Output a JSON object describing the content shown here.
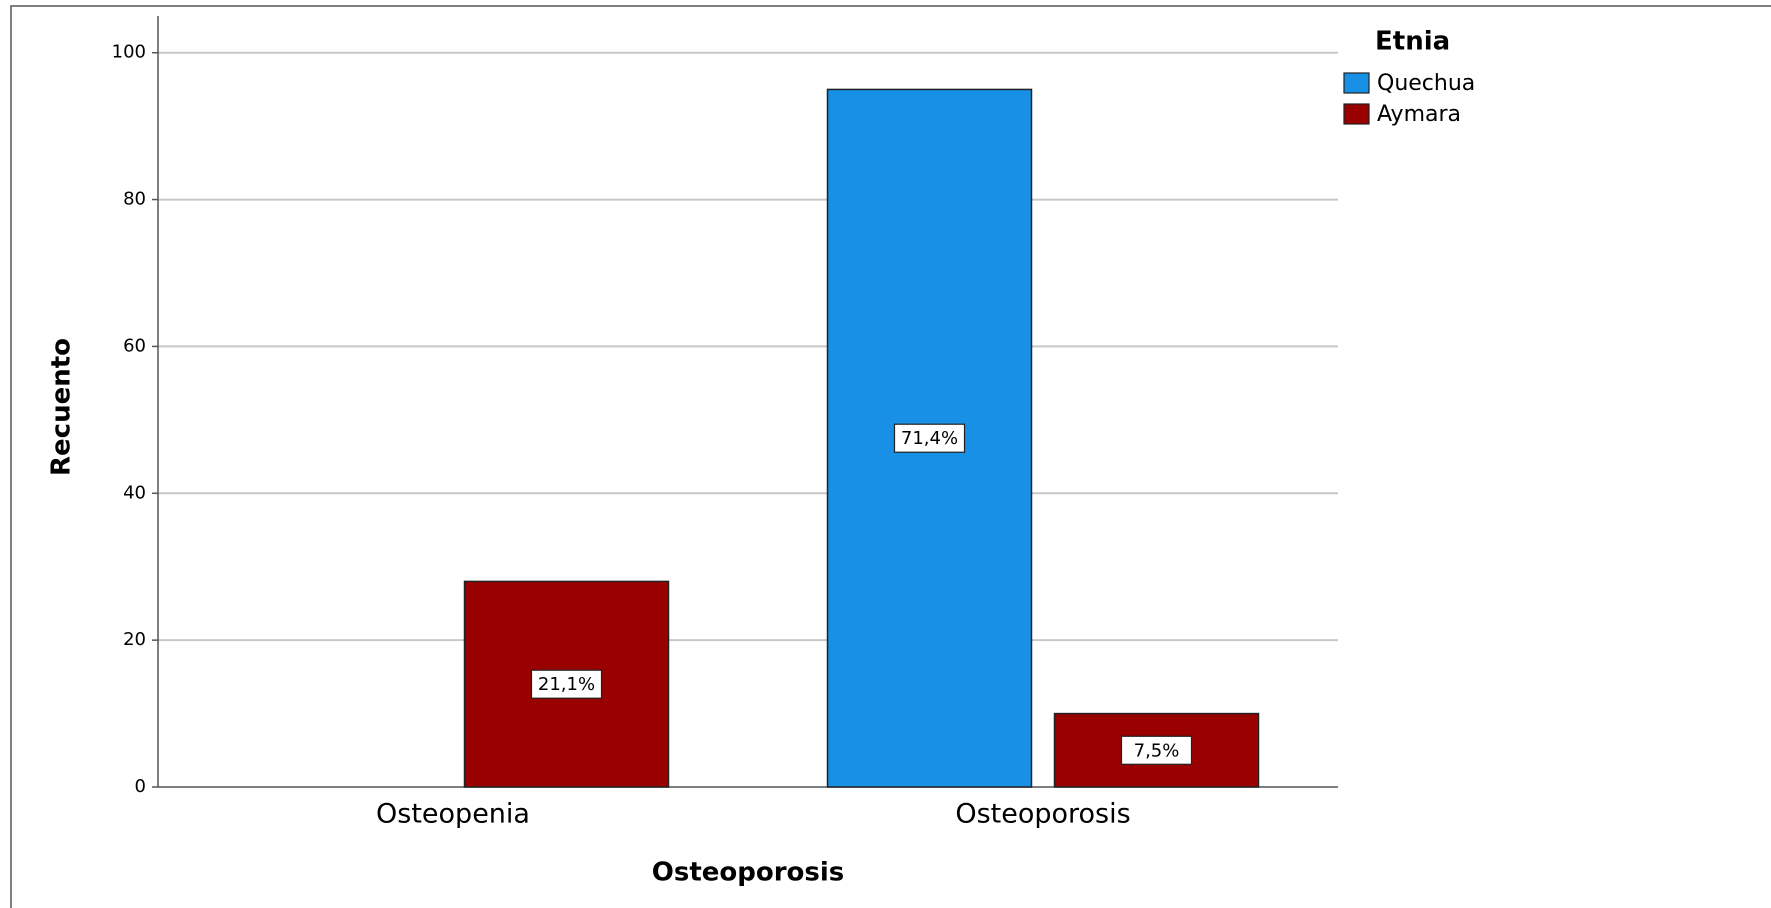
{
  "chart_data": {
    "type": "bar",
    "x_label": "Osteoporosis",
    "y_label": "Recuento",
    "categories": [
      "Osteopenia",
      "Osteoporosis"
    ],
    "series": [
      {
        "name": "Quechua",
        "color": "#1790e5",
        "values": [
          null,
          95
        ],
        "percent_labels": [
          null,
          "71,4%"
        ]
      },
      {
        "name": "Aymara",
        "color": "#990000",
        "values": [
          28,
          10
        ],
        "percent_labels": [
          "21,1%",
          "7,5%"
        ]
      }
    ],
    "legend_title": "Etnia",
    "legend_position": "upper right",
    "ylim": [
      0,
      105
    ],
    "yticks": [
      0,
      20,
      40,
      60,
      80,
      100
    ],
    "grid": true
  }
}
